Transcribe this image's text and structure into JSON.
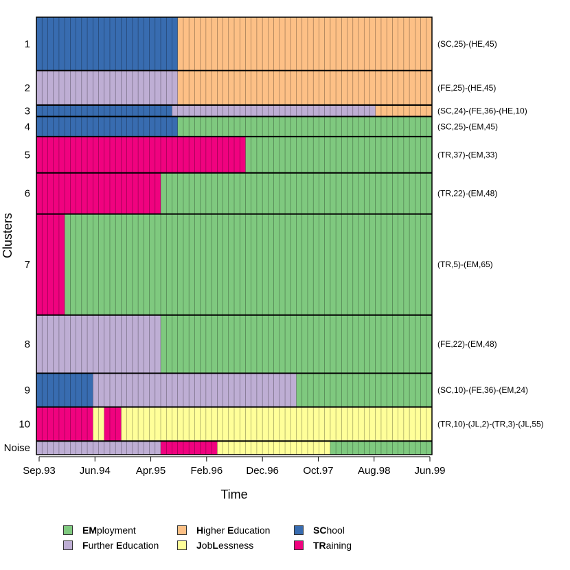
{
  "chart_data": {
    "type": "sequence-index-plot",
    "xlabel": "Time",
    "ylabel": "Clusters",
    "x_ticks": [
      "Sep.93",
      "Jun.94",
      "Apr.95",
      "Feb.96",
      "Dec.96",
      "Oct.97",
      "Aug.98",
      "Jun.99"
    ],
    "months": 70,
    "states": [
      {
        "code": "EM",
        "label": "EMployment",
        "bold": "EM",
        "rest": "ployment",
        "color": "#7fc97f"
      },
      {
        "code": "FE",
        "label": "Further Education",
        "bold": "F",
        "rest": "urther ",
        "bold2": "E",
        "rest2": "ducation",
        "color": "#beaed4"
      },
      {
        "code": "HE",
        "label": "Higher Education",
        "bold": "H",
        "rest": "igher ",
        "bold2": "E",
        "rest2": "ducation",
        "color": "#fdc086"
      },
      {
        "code": "JL",
        "label": "JobLessness",
        "bold": "J",
        "rest": "ob",
        "bold2": "L",
        "rest2": "essness",
        "color": "#ffff99"
      },
      {
        "code": "SC",
        "label": "SChool",
        "bold": "SC",
        "rest": "hool",
        "color": "#386cb0"
      },
      {
        "code": "TR",
        "label": "TRaining",
        "bold": "TR",
        "rest": "aining",
        "color": "#f0027f"
      }
    ],
    "clusters": [
      {
        "label": "1",
        "pattern": "(SC,25)-(HE,45)",
        "share": 0.122,
        "segments": [
          [
            "SC",
            25
          ],
          [
            "HE",
            45
          ]
        ]
      },
      {
        "label": "2",
        "pattern": "(FE,25)-(HE,45)",
        "share": 0.079,
        "segments": [
          [
            "FE",
            25
          ],
          [
            "HE",
            45
          ]
        ]
      },
      {
        "label": "3",
        "pattern": "(SC,24)-(FE,36)-(HE,10)",
        "share": 0.026,
        "segments": [
          [
            "SC",
            24
          ],
          [
            "FE",
            36
          ],
          [
            "HE",
            10
          ]
        ]
      },
      {
        "label": "4",
        "pattern": "(SC,25)-(EM,45)",
        "share": 0.046,
        "segments": [
          [
            "SC",
            25
          ],
          [
            "EM",
            45
          ]
        ]
      },
      {
        "label": "5",
        "pattern": "(TR,37)-(EM,33)",
        "share": 0.083,
        "segments": [
          [
            "TR",
            37
          ],
          [
            "EM",
            33
          ]
        ]
      },
      {
        "label": "6",
        "pattern": "(TR,22)-(EM,48)",
        "share": 0.094,
        "segments": [
          [
            "TR",
            22
          ],
          [
            "EM",
            48
          ]
        ]
      },
      {
        "label": "7",
        "pattern": "(TR,5)-(EM,65)",
        "share": 0.231,
        "segments": [
          [
            "TR",
            5
          ],
          [
            "EM",
            65
          ]
        ]
      },
      {
        "label": "8",
        "pattern": "(FE,22)-(EM,48)",
        "share": 0.133,
        "segments": [
          [
            "FE",
            22
          ],
          [
            "EM",
            48
          ]
        ]
      },
      {
        "label": "9",
        "pattern": "(SC,10)-(FE,36)-(EM,24)",
        "share": 0.077,
        "segments": [
          [
            "SC",
            10
          ],
          [
            "FE",
            36
          ],
          [
            "EM",
            24
          ]
        ]
      },
      {
        "label": "10",
        "pattern": "(TR,10)-(JL,2)-(TR,3)-(JL,55)",
        "share": 0.078,
        "segments": [
          [
            "TR",
            10
          ],
          [
            "JL",
            2
          ],
          [
            "TR",
            3
          ],
          [
            "JL",
            55
          ]
        ]
      },
      {
        "label": "Noise",
        "pattern": "",
        "share": 0.031,
        "segments": [
          [
            "FE",
            22
          ],
          [
            "TR",
            10
          ],
          [
            "JL",
            20
          ],
          [
            "EM",
            18
          ]
        ]
      }
    ]
  }
}
